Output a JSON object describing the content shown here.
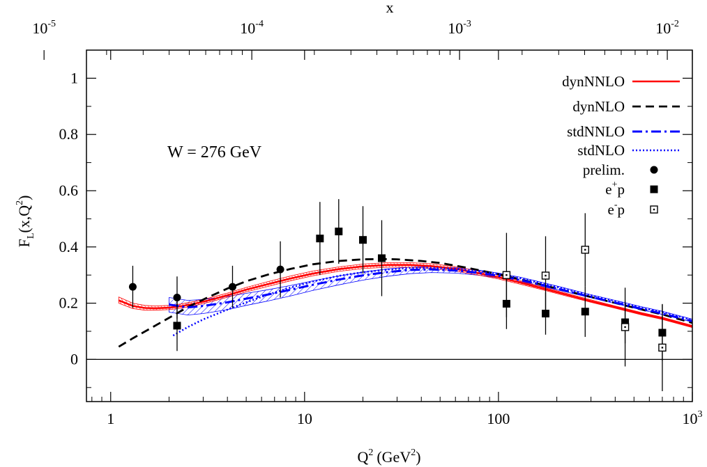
{
  "chart_data": {
    "type": "line",
    "title": "",
    "annotation": "W = 276 GeV",
    "xlabel": "Q",
    "xlabel_sup": "2",
    "xlabel_unit": "(GeV",
    "xlabel_unit_sup": "2",
    "xlabel_unit_close": ")",
    "ylabel": "F",
    "ylabel_sub": "L",
    "ylabel_args": "(x,Q",
    "ylabel_args_sup": "2",
    "ylabel_args_close": ")",
    "top_xlabel": "x",
    "x_scale": "log",
    "xlim": [
      0.75,
      1000
    ],
    "ylim": [
      -0.15,
      1.1
    ],
    "x_ticks": [
      {
        "value": 1,
        "label": "1",
        "sup": ""
      },
      {
        "value": 10,
        "label": "10",
        "sup": ""
      },
      {
        "value": 100,
        "label": "100",
        "sup": ""
      },
      {
        "value": 1000,
        "label": "10",
        "sup": "3"
      }
    ],
    "y_ticks": [
      {
        "value": 0,
        "label": "0"
      },
      {
        "value": 0.2,
        "label": "0.2"
      },
      {
        "value": 0.4,
        "label": "0.4"
      },
      {
        "value": 0.6,
        "label": "0.6"
      },
      {
        "value": 0.8,
        "label": "0.8"
      },
      {
        "value": 1,
        "label": "1"
      }
    ],
    "top_x_scale": "log",
    "top_xlim": [
      1.6e-05,
      0.0132
    ],
    "top_x_ticks": [
      {
        "value": 1e-05,
        "label": "10",
        "sup": "-5"
      },
      {
        "value": 0.0001,
        "label": "10",
        "sup": "-4"
      },
      {
        "value": 0.001,
        "label": "10",
        "sup": "-3"
      },
      {
        "value": 0.01,
        "label": "10",
        "sup": "-2"
      }
    ],
    "zero_line": true,
    "grid": false,
    "legend_position": "top-right",
    "legend": [
      {
        "label": "dynNNLO",
        "sup": "",
        "mid": "",
        "marker": "line-solid",
        "color": "#ff0000"
      },
      {
        "label": "dynNLO",
        "sup": "",
        "mid": "",
        "marker": "line-dashed",
        "color": "#000000"
      },
      {
        "label": "stdNNLO",
        "sup": "",
        "mid": "",
        "marker": "line-dashdot",
        "color": "#0000ff"
      },
      {
        "label": "stdNLO",
        "sup": "",
        "mid": "",
        "marker": "line-dotted",
        "color": "#0000ff"
      },
      {
        "label": "prelim.",
        "sup": "",
        "mid": "",
        "marker": "circle",
        "color": "#000000"
      },
      {
        "label": "e",
        "sup": "+",
        "mid": "p",
        "marker": "square",
        "color": "#000000"
      },
      {
        "label": "e",
        "sup": "-",
        "mid": "p",
        "marker": "open-square",
        "color": "#000000"
      }
    ],
    "series": [
      {
        "name": "dynNNLO",
        "style": "solid",
        "color": "#ff0000",
        "x": [
          1.1,
          1.3,
          1.5,
          1.7,
          2.0,
          2.3,
          2.7,
          3.2,
          4,
          5,
          6.5,
          8.5,
          11,
          15,
          20,
          27,
          35,
          45,
          60,
          80,
          100,
          130,
          170,
          220,
          300,
          400,
          550,
          700,
          1000
        ],
        "y": [
          0.21,
          0.19,
          0.183,
          0.182,
          0.184,
          0.189,
          0.198,
          0.21,
          0.228,
          0.248,
          0.268,
          0.288,
          0.305,
          0.321,
          0.331,
          0.336,
          0.336,
          0.332,
          0.322,
          0.306,
          0.292,
          0.273,
          0.252,
          0.232,
          0.207,
          0.186,
          0.162,
          0.146,
          0.117
        ]
      },
      {
        "name": "dynNLO",
        "style": "dashed",
        "color": "#000000",
        "x": [
          1.1,
          1.3,
          1.6,
          2.0,
          2.5,
          3.2,
          4,
          5,
          6.5,
          8.5,
          11,
          15,
          20,
          25,
          30,
          40,
          50,
          70,
          100,
          150,
          200,
          300,
          500,
          700,
          1000
        ],
        "y": [
          0.045,
          0.075,
          0.11,
          0.148,
          0.186,
          0.222,
          0.252,
          0.278,
          0.302,
          0.322,
          0.338,
          0.35,
          0.356,
          0.357,
          0.356,
          0.35,
          0.343,
          0.325,
          0.303,
          0.274,
          0.252,
          0.222,
          0.184,
          0.16,
          0.13
        ]
      },
      {
        "name": "stdNNLO",
        "style": "dashdot",
        "color": "#0000ff",
        "x": [
          2.0,
          2.5,
          3.0,
          4,
          5,
          6.5,
          8.5,
          11,
          15,
          20,
          27,
          35,
          45,
          60,
          80,
          100,
          130,
          170,
          220,
          300,
          400,
          550,
          700,
          1000
        ],
        "y": [
          0.195,
          0.185,
          0.19,
          0.203,
          0.216,
          0.231,
          0.248,
          0.265,
          0.284,
          0.299,
          0.311,
          0.318,
          0.32,
          0.316,
          0.307,
          0.297,
          0.282,
          0.264,
          0.245,
          0.222,
          0.202,
          0.179,
          0.163,
          0.136
        ]
      },
      {
        "name": "stdNLO",
        "style": "dotted",
        "color": "#0000ff",
        "x": [
          2.1,
          2.5,
          3.0,
          4,
          5,
          6.5,
          8.5,
          11,
          15,
          20,
          27,
          35,
          45,
          60,
          80,
          100,
          130,
          170,
          220,
          300,
          400,
          550,
          700,
          1000
        ],
        "y": [
          0.085,
          0.115,
          0.142,
          0.177,
          0.203,
          0.231,
          0.256,
          0.277,
          0.297,
          0.31,
          0.32,
          0.325,
          0.326,
          0.322,
          0.313,
          0.303,
          0.288,
          0.27,
          0.251,
          0.228,
          0.207,
          0.184,
          0.168,
          0.14
        ]
      }
    ],
    "bands": [
      {
        "name": "stdNNLO uncertainty",
        "color": "#0000ff",
        "hatch": "diagonal",
        "x": [
          2.0,
          2.5,
          3.0,
          4,
          5,
          6.5,
          8.5,
          11,
          15,
          20,
          27,
          35,
          45,
          60,
          80,
          100,
          130,
          170,
          220,
          300,
          400,
          550,
          700,
          1000
        ],
        "lower": [
          0.168,
          0.158,
          0.163,
          0.177,
          0.192,
          0.208,
          0.226,
          0.245,
          0.265,
          0.282,
          0.296,
          0.305,
          0.309,
          0.307,
          0.299,
          0.29,
          0.276,
          0.259,
          0.241,
          0.219,
          0.199,
          0.176,
          0.16,
          0.133
        ],
        "upper": [
          0.22,
          0.21,
          0.213,
          0.224,
          0.235,
          0.248,
          0.263,
          0.279,
          0.297,
          0.311,
          0.322,
          0.328,
          0.33,
          0.326,
          0.317,
          0.307,
          0.292,
          0.273,
          0.254,
          0.23,
          0.21,
          0.187,
          0.171,
          0.143
        ]
      },
      {
        "name": "dynNNLO uncertainty",
        "color": "#ff0000",
        "hatch": "diagonal",
        "x": [
          1.1,
          1.3,
          1.5,
          1.7,
          2.0,
          2.3,
          2.7,
          3.2,
          4,
          5,
          6.5,
          8.5,
          11,
          15,
          20,
          27,
          35,
          45,
          60,
          80,
          100,
          130,
          170,
          220,
          300,
          400,
          550,
          700,
          1000
        ],
        "lower": [
          0.2,
          0.181,
          0.175,
          0.175,
          0.177,
          0.182,
          0.191,
          0.203,
          0.221,
          0.24,
          0.26,
          0.28,
          0.297,
          0.313,
          0.323,
          0.328,
          0.328,
          0.324,
          0.314,
          0.299,
          0.286,
          0.267,
          0.247,
          0.227,
          0.203,
          0.182,
          0.158,
          0.142,
          0.113
        ],
        "upper": [
          0.222,
          0.2,
          0.192,
          0.19,
          0.192,
          0.197,
          0.206,
          0.218,
          0.236,
          0.256,
          0.277,
          0.297,
          0.314,
          0.329,
          0.339,
          0.344,
          0.344,
          0.34,
          0.33,
          0.313,
          0.299,
          0.279,
          0.257,
          0.237,
          0.212,
          0.19,
          0.166,
          0.15,
          0.121
        ]
      }
    ],
    "points": {
      "prelim": [
        {
          "x": 1.3,
          "y": 0.258,
          "err": 0.075
        },
        {
          "x": 2.2,
          "y": 0.22,
          "err": 0.075
        },
        {
          "x": 4.25,
          "y": 0.258,
          "err": 0.075
        },
        {
          "x": 7.5,
          "y": 0.32,
          "err": 0.1
        }
      ],
      "eplus_p": [
        {
          "x": 2.2,
          "y": 0.12,
          "err": 0.09
        },
        {
          "x": 12,
          "y": 0.43,
          "err": 0.13
        },
        {
          "x": 15,
          "y": 0.455,
          "err": 0.115
        },
        {
          "x": 20,
          "y": 0.425,
          "err": 0.12
        },
        {
          "x": 25,
          "y": 0.36,
          "err": 0.135
        },
        {
          "x": 110,
          "y": 0.198,
          "err": 0.09
        },
        {
          "x": 175,
          "y": 0.163,
          "err": 0.075
        },
        {
          "x": 280,
          "y": 0.17,
          "err": 0.09
        },
        {
          "x": 450,
          "y": 0.132,
          "err": 0.075
        },
        {
          "x": 700,
          "y": 0.095,
          "err": 0.1
        }
      ],
      "eminus_p": [
        {
          "x": 110,
          "y": 0.3,
          "err": 0.15
        },
        {
          "x": 175,
          "y": 0.298,
          "err": 0.14
        },
        {
          "x": 280,
          "y": 0.39,
          "err": 0.13
        },
        {
          "x": 450,
          "y": 0.115,
          "err": 0.14
        },
        {
          "x": 700,
          "y": 0.042,
          "err": 0.155
        }
      ]
    }
  }
}
